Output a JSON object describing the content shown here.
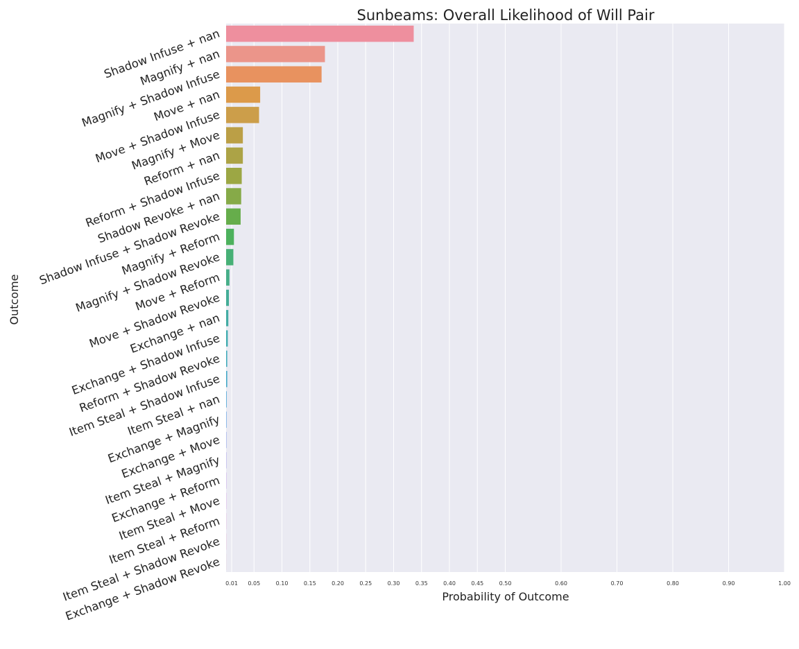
{
  "chart_data": {
    "type": "bar",
    "orientation": "horizontal",
    "title": "Sunbeams: Overall Likelihood of Will Pair",
    "xlabel": "Probability of Outcome",
    "ylabel": "Outcome",
    "xlim": [
      0,
      1.0
    ],
    "xticks": [
      0.01,
      0.05,
      0.1,
      0.15,
      0.2,
      0.25,
      0.3,
      0.35,
      0.4,
      0.45,
      0.5,
      0.6,
      0.7,
      0.8,
      0.9,
      1.0
    ],
    "xtick_labels": [
      "0.01",
      "0.05",
      "0.10",
      "0.15",
      "0.20",
      "0.25",
      "0.30",
      "0.35",
      "0.40",
      "0.45",
      "0.50",
      "0.60",
      "0.70",
      "0.80",
      "0.90",
      "1.00"
    ],
    "grid": true,
    "categories": [
      "Shadow Infuse + nan",
      "Magnify + nan",
      "Magnify + Shadow Infuse",
      "Move + nan",
      "Move + Shadow Infuse",
      "Magnify + Move",
      "Reform + nan",
      "Reform + Shadow Infuse",
      "Shadow Revoke + nan",
      "Shadow Infuse + Shadow Revoke",
      "Magnify + Reform",
      "Magnify + Shadow Revoke",
      "Move + Reform",
      "Move + Shadow Revoke",
      "Exchange + nan",
      "Exchange + Shadow Infuse",
      "Reform + Shadow Revoke",
      "Item Steal + Shadow Infuse",
      "Item Steal + nan",
      "Exchange + Magnify",
      "Exchange + Move",
      "Item Steal + Magnify",
      "Exchange + Reform",
      "Item Steal + Move",
      "Item Steal + Reform",
      "Item Steal + Shadow Revoke",
      "Exchange + Shadow Revoke"
    ],
    "values": [
      0.336,
      0.177,
      0.171,
      0.061,
      0.059,
      0.03,
      0.03,
      0.028,
      0.027,
      0.026,
      0.014,
      0.013,
      0.006,
      0.005,
      0.004,
      0.003,
      0.002,
      0.002,
      0.001,
      0.0008,
      0.0006,
      0.0005,
      0.0004,
      0.0003,
      0.0002,
      0.0002,
      0.0001
    ],
    "colors": [
      "#ee8f9e",
      "#eb958a",
      "#e8925f",
      "#dc9a4a",
      "#cc9e4a",
      "#bb9f46",
      "#aca346",
      "#9ca744",
      "#86aa48",
      "#66ad4b",
      "#4db15d",
      "#47b076",
      "#46ae88",
      "#44ad97",
      "#43aca4",
      "#41acb0",
      "#43abbc",
      "#45a9c8",
      "#49a5d6",
      "#5aa0e2",
      "#7d97e8",
      "#9c8fe8",
      "#b885e8",
      "#cf7ae2",
      "#dd74cf",
      "#e578bb",
      "#ea80a8"
    ]
  }
}
